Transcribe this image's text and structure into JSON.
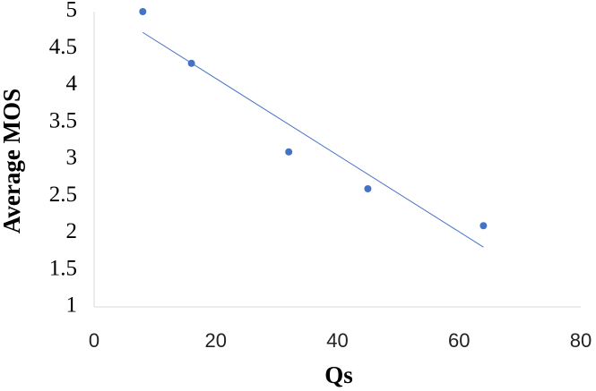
{
  "chart_data": {
    "type": "scatter",
    "x_label": "Qs",
    "y_label": "Average MOS",
    "series": [
      {
        "color": "#4472c4",
        "x": [
          8,
          16,
          32,
          45,
          64
        ],
        "values": [
          5,
          4.3,
          3.1,
          2.6,
          2.1
        ]
      }
    ],
    "trendline": "linear",
    "xlim": [
      0,
      80
    ],
    "xticks": [
      0,
      20,
      40,
      60,
      80
    ],
    "ylim": [
      1,
      5
    ],
    "yticks": [
      1,
      1.5,
      2,
      2.5,
      3,
      3.5,
      4,
      4.5,
      5
    ]
  }
}
